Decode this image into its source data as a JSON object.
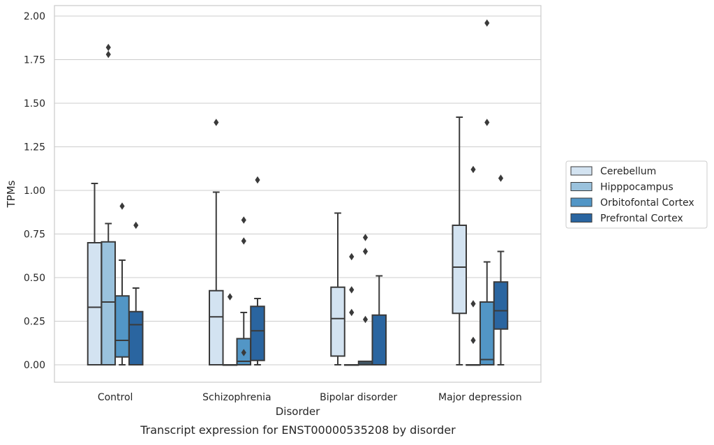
{
  "chart_data": {
    "type": "boxplot",
    "title": "",
    "caption": "Transcript expression for ENST00000535208 by disorder",
    "xlabel": "Disorder",
    "ylabel": "TPMs",
    "ylim": [
      -0.1,
      2.06
    ],
    "yticks": [
      0.0,
      0.25,
      0.5,
      0.75,
      1.0,
      1.25,
      1.5,
      1.75,
      2.0
    ],
    "ytick_labels": [
      "0.00",
      "0.25",
      "0.50",
      "0.75",
      "1.00",
      "1.25",
      "1.50",
      "1.75",
      "2.00"
    ],
    "grid": "horizontal",
    "legend_position": "right",
    "categories": [
      "Control",
      "Schizophrenia",
      "Bipolar disorder",
      "Major depression"
    ],
    "series": [
      {
        "name": "Cerebellum",
        "color": "#d3e3f1",
        "boxes": [
          {
            "whisker_low": 0.0,
            "q1": 0.0,
            "median": 0.33,
            "q3": 0.7,
            "whisker_high": 1.04,
            "outliers": []
          },
          {
            "whisker_low": 0.0,
            "q1": 0.0,
            "median": 0.275,
            "q3": 0.425,
            "whisker_high": 0.99,
            "outliers": [
              1.39
            ]
          },
          {
            "whisker_low": 0.0,
            "q1": 0.05,
            "median": 0.265,
            "q3": 0.445,
            "whisker_high": 0.87,
            "outliers": []
          },
          {
            "whisker_low": 0.0,
            "q1": 0.295,
            "median": 0.56,
            "q3": 0.8,
            "whisker_high": 1.42,
            "outliers": []
          }
        ]
      },
      {
        "name": "Hipppocampus",
        "color": "#9ac2dd",
        "boxes": [
          {
            "whisker_low": 0.0,
            "q1": 0.0,
            "median": 0.36,
            "q3": 0.705,
            "whisker_high": 0.81,
            "outliers": [
              1.78,
              1.82
            ]
          },
          {
            "whisker_low": 0.0,
            "q1": 0.0,
            "median": 0.0,
            "q3": 0.0,
            "whisker_high": 0.0,
            "outliers": [
              0.39
            ]
          },
          {
            "whisker_low": 0.0,
            "q1": 0.0,
            "median": 0.0,
            "q3": 0.0,
            "whisker_high": 0.0,
            "outliers": [
              0.3,
              0.43,
              0.62
            ]
          },
          {
            "whisker_low": 0.0,
            "q1": 0.0,
            "median": 0.0,
            "q3": 0.0,
            "whisker_high": 0.0,
            "outliers": [
              0.14,
              0.35,
              1.12
            ]
          }
        ]
      },
      {
        "name": "Orbitofontal Cortex",
        "color": "#5296c6",
        "boxes": [
          {
            "whisker_low": 0.0,
            "q1": 0.045,
            "median": 0.14,
            "q3": 0.395,
            "whisker_high": 0.6,
            "outliers": [
              0.91
            ]
          },
          {
            "whisker_low": 0.0,
            "q1": 0.0,
            "median": 0.02,
            "q3": 0.15,
            "whisker_high": 0.3,
            "outliers": [
              0.07,
              0.71,
              0.83
            ]
          },
          {
            "whisker_low": 0.0,
            "q1": 0.0,
            "median": 0.01,
            "q3": 0.02,
            "whisker_high": 0.02,
            "outliers": [
              0.26,
              0.65,
              0.73
            ]
          },
          {
            "whisker_low": 0.0,
            "q1": 0.0,
            "median": 0.03,
            "q3": 0.36,
            "whisker_high": 0.59,
            "outliers": [
              1.39,
              1.96
            ]
          }
        ]
      },
      {
        "name": "Prefrontal Cortex",
        "color": "#2a65a0",
        "boxes": [
          {
            "whisker_low": 0.0,
            "q1": 0.0,
            "median": 0.23,
            "q3": 0.305,
            "whisker_high": 0.44,
            "outliers": [
              0.8
            ]
          },
          {
            "whisker_low": 0.0,
            "q1": 0.025,
            "median": 0.195,
            "q3": 0.335,
            "whisker_high": 0.38,
            "outliers": [
              1.06
            ]
          },
          {
            "whisker_low": 0.0,
            "q1": 0.0,
            "median": 0.0,
            "q3": 0.285,
            "whisker_high": 0.51,
            "outliers": []
          },
          {
            "whisker_low": 0.0,
            "q1": 0.205,
            "median": 0.31,
            "q3": 0.475,
            "whisker_high": 0.65,
            "outliers": [
              1.07
            ]
          }
        ]
      }
    ]
  }
}
